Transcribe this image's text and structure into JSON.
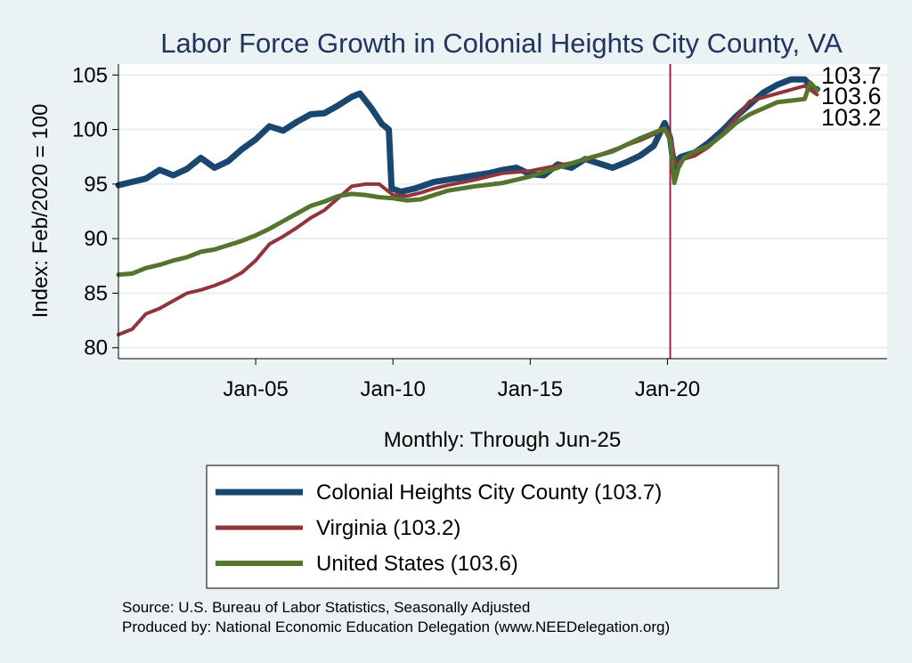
{
  "chart_data": {
    "type": "line",
    "title": "Labor Force Growth in Colonial Heights City  County, VA",
    "xlabel": "Monthly: Through Jun-25",
    "ylabel": "Index: Feb/2020 = 100",
    "x_ticks": [
      "Jan-05",
      "Jan-10",
      "Jan-15",
      "Jan-20"
    ],
    "x_tick_years": [
      2005,
      2010,
      2015,
      2020
    ],
    "y_ticks": [
      80,
      85,
      90,
      95,
      100,
      105
    ],
    "ylim": [
      79,
      106
    ],
    "xlim": [
      2000.0,
      2028.0
    ],
    "vline": {
      "x": 2020.1,
      "color": "#a0234a"
    },
    "grid": "horizontal",
    "end_labels": [
      "103.7",
      "103.6",
      "103.2"
    ],
    "series": [
      {
        "name": "Colonial Heights City  County",
        "legend": "Colonial Heights City  County (103.7)",
        "color": "#1a476f",
        "width": 7,
        "x": [
          2000.0,
          2000.5,
          2001.0,
          2001.5,
          2002.0,
          2002.5,
          2003.0,
          2003.5,
          2004.0,
          2004.5,
          2005.0,
          2005.5,
          2006.0,
          2006.5,
          2007.0,
          2007.5,
          2008.0,
          2008.5,
          2008.8,
          2009.2,
          2009.6,
          2009.85,
          2009.95,
          2010.3,
          2010.8,
          2011.5,
          2012.0,
          2012.5,
          2013.0,
          2013.5,
          2014.0,
          2014.5,
          2015.0,
          2015.5,
          2016.0,
          2016.5,
          2017.0,
          2017.5,
          2018.0,
          2018.5,
          2019.0,
          2019.5,
          2019.9,
          2020.1,
          2020.25,
          2020.35,
          2020.5,
          2021.0,
          2021.5,
          2022.0,
          2022.5,
          2023.0,
          2023.5,
          2024.0,
          2024.5,
          2025.0,
          2025.3,
          2025.45
        ],
        "values": [
          94.9,
          95.2,
          95.5,
          96.3,
          95.8,
          96.4,
          97.4,
          96.5,
          97.1,
          98.2,
          99.1,
          100.3,
          99.9,
          100.7,
          101.4,
          101.5,
          102.2,
          103.0,
          103.3,
          102.0,
          100.5,
          100.0,
          94.6,
          94.3,
          94.6,
          95.2,
          95.4,
          95.6,
          95.8,
          96.0,
          96.3,
          96.5,
          95.9,
          95.8,
          96.8,
          96.5,
          97.3,
          96.9,
          96.5,
          97.0,
          97.6,
          98.5,
          100.6,
          99.2,
          96.2,
          97.2,
          97.5,
          97.9,
          98.8,
          99.9,
          101.2,
          102.3,
          103.4,
          104.1,
          104.6,
          104.6,
          103.8,
          103.7
        ]
      },
      {
        "name": "Virginia",
        "legend": "Virginia (103.2)",
        "color": "#90353b",
        "width": 4,
        "x": [
          2000.0,
          2000.5,
          2001.0,
          2001.5,
          2002.0,
          2002.5,
          2003.0,
          2003.5,
          2004.0,
          2004.5,
          2005.0,
          2005.5,
          2006.0,
          2006.5,
          2007.0,
          2007.5,
          2008.0,
          2008.5,
          2009.0,
          2009.5,
          2010.0,
          2010.5,
          2011.0,
          2011.5,
          2012.0,
          2013.0,
          2014.0,
          2015.0,
          2016.0,
          2017.0,
          2018.0,
          2019.0,
          2019.9,
          2020.1,
          2020.3,
          2020.6,
          2021.0,
          2021.5,
          2022.0,
          2022.5,
          2023.0,
          2024.0,
          2025.0,
          2025.45
        ],
        "values": [
          81.2,
          81.7,
          83.1,
          83.6,
          84.3,
          85.0,
          85.3,
          85.7,
          86.2,
          86.9,
          88.0,
          89.5,
          90.2,
          91.0,
          91.9,
          92.6,
          93.7,
          94.8,
          95.0,
          95.0,
          94.0,
          93.9,
          94.2,
          94.6,
          94.9,
          95.4,
          96.0,
          96.2,
          96.7,
          97.2,
          98.1,
          99.0,
          100.0,
          99.6,
          96.8,
          97.3,
          97.6,
          98.4,
          99.6,
          101.1,
          102.6,
          103.3,
          104.0,
          103.2
        ]
      },
      {
        "name": "United States",
        "legend": "United States (103.6)",
        "color": "#55752f",
        "width": 5,
        "x": [
          2000.0,
          2000.5,
          2001.0,
          2001.5,
          2002.0,
          2002.5,
          2003.0,
          2003.5,
          2004.0,
          2004.5,
          2005.0,
          2005.5,
          2006.0,
          2006.5,
          2007.0,
          2007.5,
          2008.0,
          2008.5,
          2009.0,
          2009.5,
          2010.0,
          2010.5,
          2011.0,
          2011.5,
          2012.0,
          2013.0,
          2014.0,
          2015.0,
          2016.0,
          2017.0,
          2018.0,
          2019.0,
          2019.9,
          2020.1,
          2020.25,
          2020.4,
          2020.6,
          2021.0,
          2021.5,
          2022.0,
          2022.5,
          2023.0,
          2024.0,
          2025.0,
          2025.2,
          2025.45
        ],
        "values": [
          86.7,
          86.8,
          87.3,
          87.6,
          88.0,
          88.3,
          88.8,
          89.0,
          89.4,
          89.8,
          90.3,
          90.9,
          91.6,
          92.3,
          93.0,
          93.4,
          93.9,
          94.1,
          94.0,
          93.8,
          93.7,
          93.5,
          93.6,
          94.0,
          94.4,
          94.8,
          95.1,
          95.7,
          96.5,
          97.3,
          98.0,
          99.2,
          100.1,
          99.0,
          95.1,
          96.5,
          97.4,
          98.0,
          98.5,
          99.5,
          100.6,
          101.4,
          102.5,
          102.8,
          104.3,
          103.6
        ]
      }
    ]
  },
  "source_note": "Source: U.S. Bureau of Labor Statistics, Seasonally Adjusted",
  "produced_note": "Produced by: National Economic Education Delegation (www.NEEDelegation.org)"
}
